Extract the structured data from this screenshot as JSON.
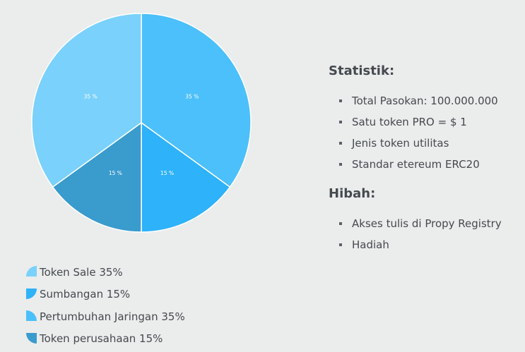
{
  "chart_data": {
    "type": "pie",
    "slices": [
      {
        "label": "Token Sale 35%",
        "value": 35,
        "display": "35 %",
        "color": "#7ad1fb"
      },
      {
        "label": "Sumbangan 15%",
        "value": 15,
        "display": "15 %",
        "color": "#2eb2f9"
      },
      {
        "label": "Pertumbuhan Jaringan 35%",
        "value": 35,
        "display": "35 %",
        "color": "#4cc0fa"
      },
      {
        "label": "Token perusahaan 15%",
        "value": 15,
        "display": "15 %",
        "color": "#3a9bcd"
      }
    ],
    "order_clockwise_from_top": [
      2,
      1,
      3,
      0
    ]
  },
  "stats": {
    "title": "Statistik:",
    "items": [
      "Total Pasokan: 100.000.000",
      "Satu token PRO = $ 1",
      "Jenis token utilitas",
      "Standar etereum ERC20"
    ]
  },
  "grants": {
    "title": "Hibah:",
    "items": [
      "Akses tulis di Propy Registry",
      "Hadiah"
    ]
  }
}
